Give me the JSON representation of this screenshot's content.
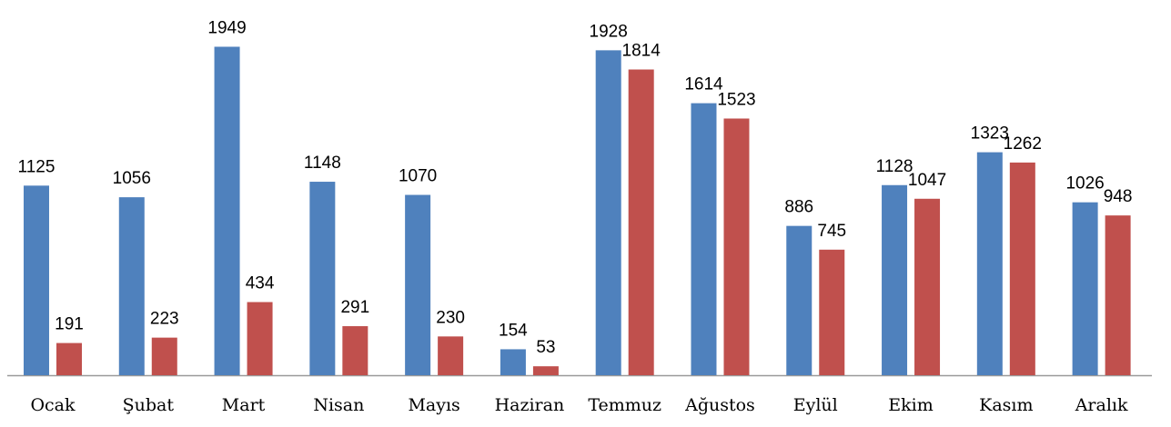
{
  "chart_data": {
    "type": "bar",
    "categories": [
      "Ocak",
      "Şubat",
      "Mart",
      "Nisan",
      "Mayıs",
      "Haziran",
      "Temmuz",
      "Ağustos",
      "Eylül",
      "Ekim",
      "Kasım",
      "Aralık"
    ],
    "series": [
      {
        "color": "#4f81bd",
        "values": [
          1125,
          1056,
          1949,
          1148,
          1070,
          154,
          1928,
          1614,
          886,
          1128,
          1323,
          1026
        ]
      },
      {
        "color": "#c0504d",
        "values": [
          191,
          223,
          434,
          291,
          230,
          53,
          1814,
          1523,
          745,
          1047,
          1262,
          948
        ]
      }
    ],
    "ylim": [
      0,
      2000
    ]
  }
}
